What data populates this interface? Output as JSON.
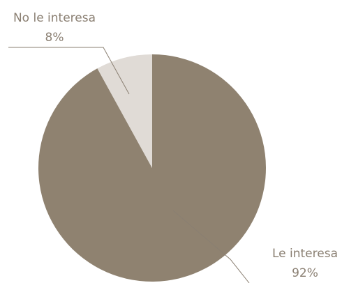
{
  "chart_data": {
    "type": "pie",
    "categories": [
      "Le interesa",
      "No le interesa"
    ],
    "values": [
      92,
      8
    ],
    "value_labels": [
      "92%",
      "8%"
    ],
    "colors": [
      "#8f8270",
      "#e0dbd6"
    ]
  }
}
